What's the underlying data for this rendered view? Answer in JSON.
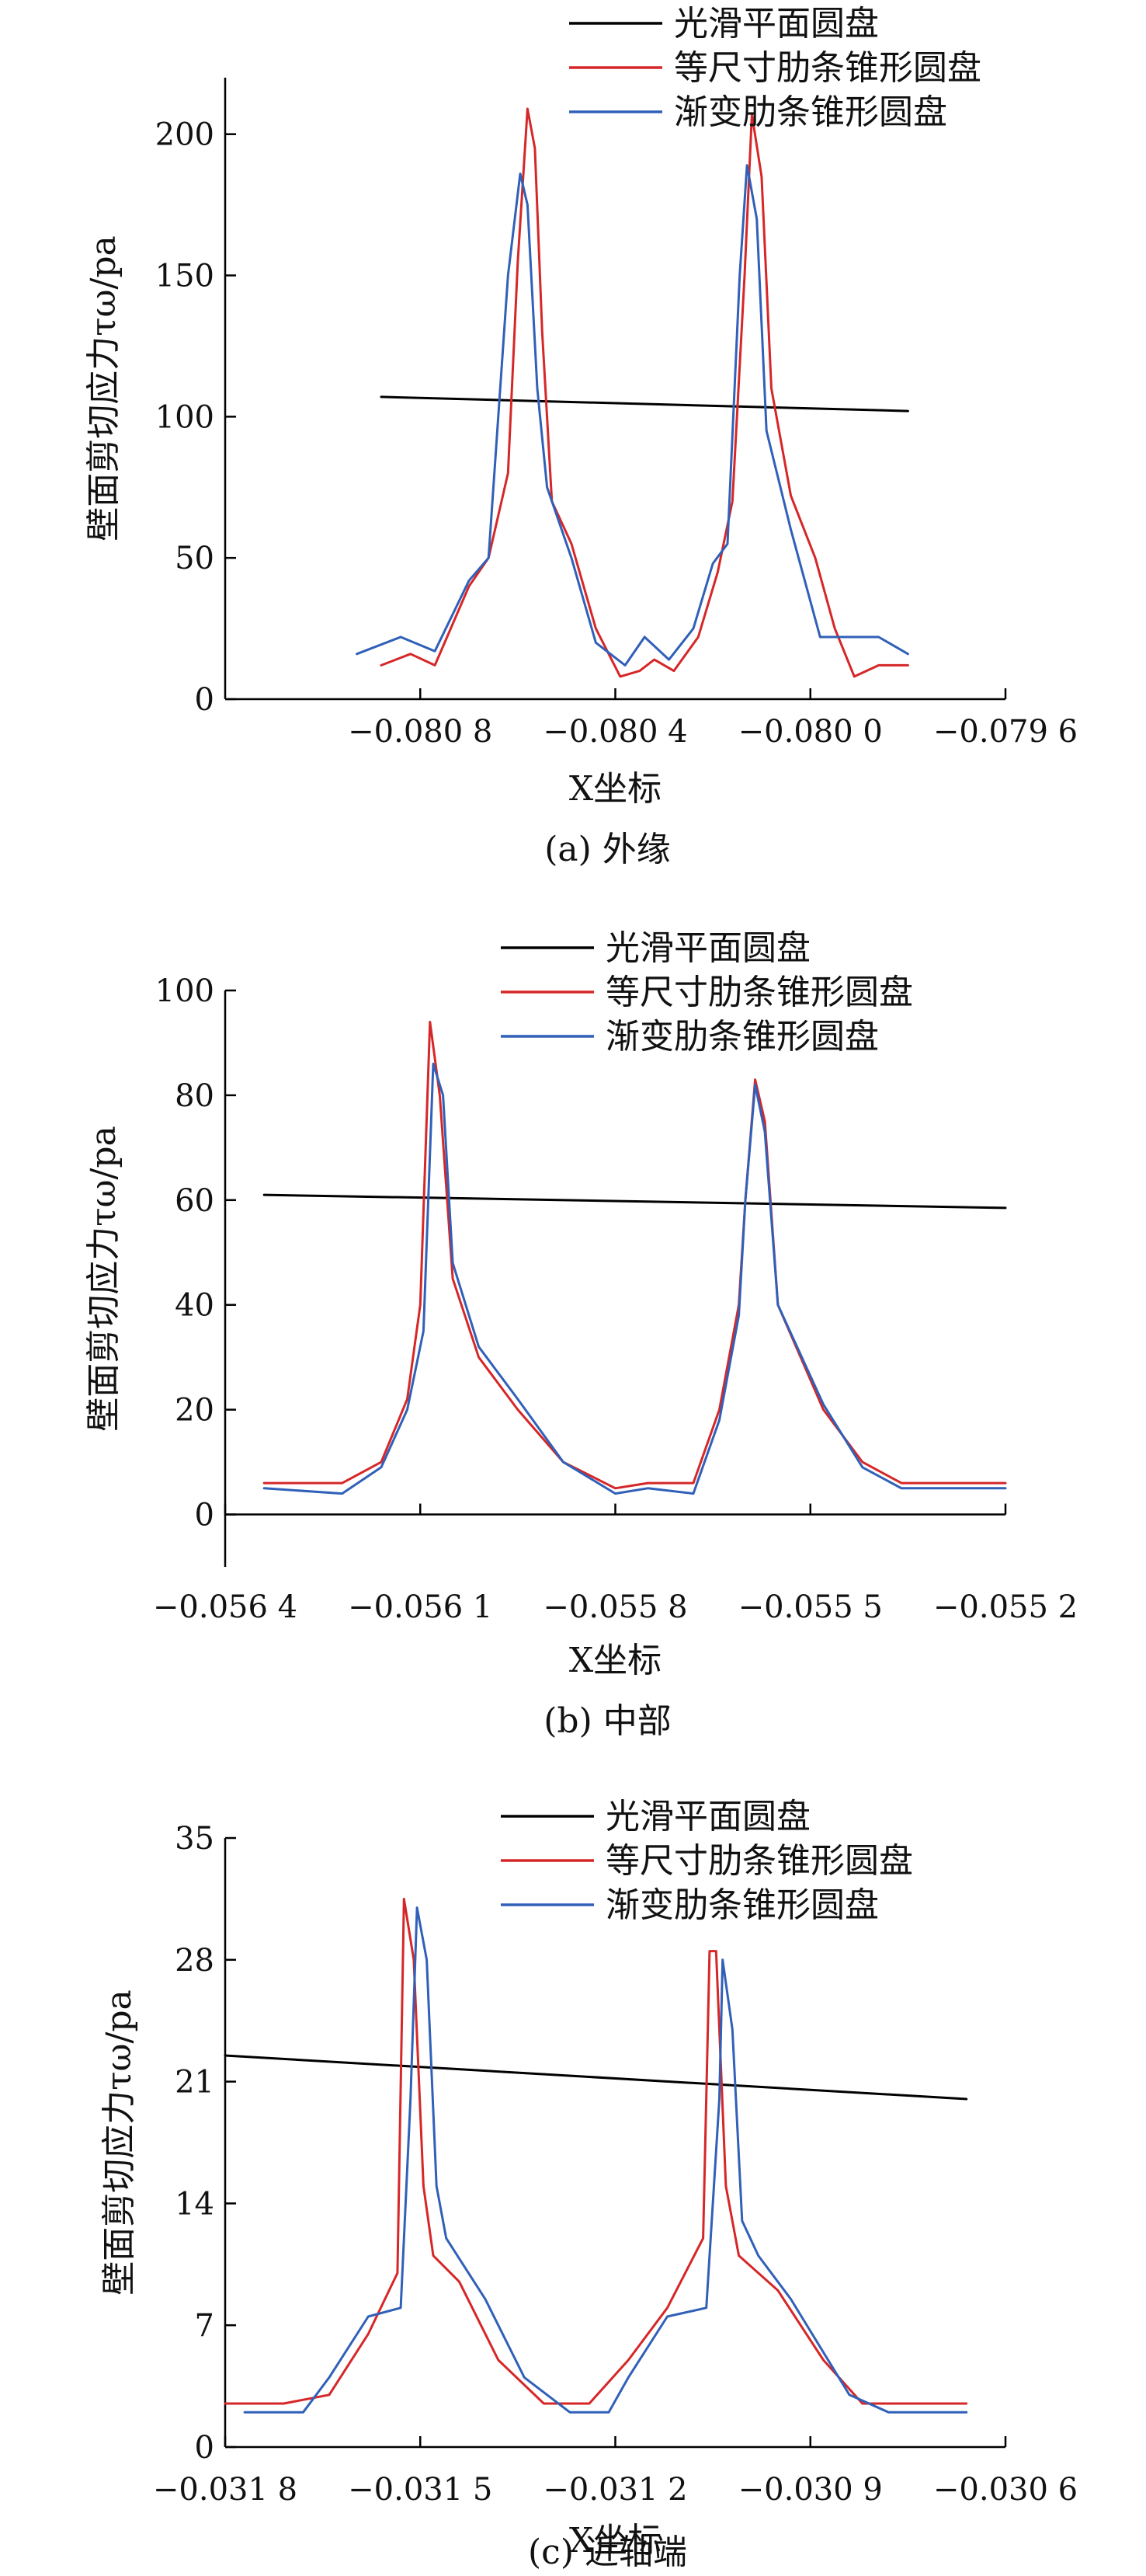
{
  "chart_data": [
    {
      "type": "line",
      "caption": "(a) 外缘",
      "xlabel": "X坐标",
      "ylabel": "壁面剪切应力τω/pa",
      "xlim": [
        -0.0812,
        -0.0796
      ],
      "ylim": [
        0,
        220
      ],
      "xticks": [
        -0.0808,
        -0.0804,
        -0.08,
        -0.0796
      ],
      "xtick_labels": [
        "−0.080 8",
        "−0.080 4",
        "−0.080 0",
        "−0.079 6"
      ],
      "yticks": [
        0,
        50,
        100,
        150,
        200
      ],
      "ytick_labels": [
        "0",
        "50",
        "100",
        "150",
        "200"
      ],
      "grid": false,
      "legend": "top-right",
      "series": [
        {
          "name": "光滑平面圆盘",
          "color": "#000000",
          "x": [
            -0.08088,
            -0.0798
          ],
          "y": [
            107,
            102
          ]
        },
        {
          "name": "等尺寸肋条锥形圆盘",
          "color": "#d62728",
          "x": [
            -0.08088,
            -0.08082,
            -0.08077,
            -0.0807,
            -0.08066,
            -0.08062,
            -0.0806,
            -0.08058,
            -0.080565,
            -0.08055,
            -0.08053,
            -0.08049,
            -0.08044,
            -0.08039,
            -0.08035,
            -0.08032,
            -0.08028,
            -0.08023,
            -0.08019,
            -0.08016,
            -0.080135,
            -0.08012,
            -0.0801,
            -0.08008,
            -0.08004,
            -0.07999,
            -0.07995,
            -0.07991,
            -0.07986,
            -0.0798
          ],
          "y": [
            12,
            16,
            12,
            40,
            50,
            80,
            155,
            209,
            195,
            130,
            70,
            55,
            25,
            8,
            10,
            14,
            10,
            22,
            45,
            70,
            150,
            207,
            185,
            110,
            72,
            50,
            25,
            8,
            12,
            12
          ]
        },
        {
          "name": "渐变肋条锥形圆盘",
          "color": "#3060b8",
          "x": [
            -0.08093,
            -0.08084,
            -0.08077,
            -0.0807,
            -0.08066,
            -0.08062,
            -0.080595,
            -0.08058,
            -0.08056,
            -0.08054,
            -0.08049,
            -0.08044,
            -0.08038,
            -0.08034,
            -0.08029,
            -0.08024,
            -0.0802,
            -0.08017,
            -0.080145,
            -0.08013,
            -0.08011,
            -0.08009,
            -0.08004,
            -0.07998,
            -0.0799,
            -0.07986,
            -0.0798
          ],
          "y": [
            16,
            22,
            17,
            42,
            50,
            150,
            186,
            175,
            110,
            75,
            50,
            20,
            12,
            22,
            14,
            25,
            48,
            55,
            150,
            189,
            170,
            95,
            60,
            22,
            22,
            22,
            16
          ]
        }
      ]
    },
    {
      "type": "line",
      "caption": "(b) 中部",
      "xlabel": "X坐标",
      "ylabel": "壁面剪切应力τω/pa",
      "xlim": [
        -0.0564,
        -0.0552
      ],
      "ylim": [
        -10,
        100
      ],
      "xticks": [
        -0.0564,
        -0.0561,
        -0.0558,
        -0.0555,
        -0.0552
      ],
      "xtick_labels": [
        "−0.056 4",
        "−0.056 1",
        "−0.055 8",
        "−0.055 5",
        "−0.055 2"
      ],
      "yticks": [
        0,
        20,
        40,
        60,
        80,
        100
      ],
      "ytick_labels": [
        "0",
        "20",
        "40",
        "60",
        "80",
        "100"
      ],
      "grid": false,
      "legend": "top-right",
      "series": [
        {
          "name": "光滑平面圆盘",
          "color": "#000000",
          "x": [
            -0.05634,
            -0.0552
          ],
          "y": [
            61,
            58.5
          ]
        },
        {
          "name": "等尺寸肋条锥形圆盘",
          "color": "#d62728",
          "x": [
            -0.05634,
            -0.05622,
            -0.05616,
            -0.05612,
            -0.0561,
            -0.056085,
            -0.05607,
            -0.05605,
            -0.05601,
            -0.05595,
            -0.05588,
            -0.0558,
            -0.05575,
            -0.05568,
            -0.05564,
            -0.05561,
            -0.0556,
            -0.055585,
            -0.05557,
            -0.05555,
            -0.05548,
            -0.05542,
            -0.05536,
            -0.0552
          ],
          "y": [
            6,
            6,
            10,
            22,
            40,
            94,
            80,
            45,
            30,
            20,
            10,
            5,
            6,
            6,
            20,
            40,
            60,
            83,
            75,
            40,
            20,
            10,
            6,
            6
          ]
        },
        {
          "name": "渐变肋条锥形圆盘",
          "color": "#3060b8",
          "x": [
            -0.05634,
            -0.05622,
            -0.05616,
            -0.05612,
            -0.056095,
            -0.05608,
            -0.056065,
            -0.05605,
            -0.05601,
            -0.05595,
            -0.05588,
            -0.0558,
            -0.05575,
            -0.05568,
            -0.05564,
            -0.05561,
            -0.0556,
            -0.055585,
            -0.05557,
            -0.05555,
            -0.05548,
            -0.05542,
            -0.05536,
            -0.0552
          ],
          "y": [
            5,
            4,
            9,
            20,
            35,
            86,
            80,
            48,
            32,
            22,
            10,
            4,
            5,
            4,
            18,
            38,
            60,
            82,
            73,
            40,
            21,
            9,
            5,
            5
          ]
        }
      ]
    },
    {
      "type": "line",
      "caption": "(c) 近轴端",
      "xlabel": "X坐标",
      "ylabel": "壁面剪切应力τω/pa",
      "xlim": [
        -0.0318,
        -0.0306
      ],
      "ylim": [
        0,
        35
      ],
      "xticks": [
        -0.0318,
        -0.0315,
        -0.0312,
        -0.0309,
        -0.0306
      ],
      "xtick_labels": [
        "−0.031 8",
        "−0.031 5",
        "−0.031 2",
        "−0.030 9",
        "−0.030 6"
      ],
      "yticks": [
        0,
        7,
        14,
        21,
        28,
        35
      ],
      "ytick_labels": [
        "0",
        "7",
        "14",
        "21",
        "28",
        "35"
      ],
      "grid": false,
      "legend": "top-right",
      "series": [
        {
          "name": "光滑平面圆盘",
          "color": "#000000",
          "x": [
            -0.0318,
            -0.03066
          ],
          "y": [
            22.5,
            20
          ]
        },
        {
          "name": "等尺寸肋条锥形圆盘",
          "color": "#d62728",
          "x": [
            -0.0318,
            -0.03171,
            -0.03164,
            -0.03158,
            -0.031535,
            -0.031525,
            -0.03151,
            -0.031495,
            -0.03148,
            -0.03144,
            -0.03138,
            -0.03131,
            -0.03124,
            -0.03118,
            -0.03112,
            -0.031065,
            -0.031055,
            -0.031045,
            -0.03103,
            -0.03101,
            -0.03095,
            -0.03088,
            -0.03082,
            -0.03066
          ],
          "y": [
            2.5,
            2.5,
            3,
            6.5,
            10,
            31.5,
            28,
            15,
            11,
            9.5,
            5,
            2.5,
            2.5,
            5,
            8,
            12,
            28.5,
            28.5,
            15,
            11,
            9,
            5,
            2.5,
            2.5
          ]
        },
        {
          "name": "渐变肋条锥形圆盘",
          "color": "#3060b8",
          "x": [
            -0.03177,
            -0.03168,
            -0.03164,
            -0.03158,
            -0.03153,
            -0.031515,
            -0.031505,
            -0.03149,
            -0.031475,
            -0.03146,
            -0.0314,
            -0.03134,
            -0.03127,
            -0.03121,
            -0.03118,
            -0.03112,
            -0.03106,
            -0.03104,
            -0.031035,
            -0.03102,
            -0.031005,
            -0.03098,
            -0.03093,
            -0.03084,
            -0.03078,
            -0.03066
          ],
          "y": [
            2,
            2,
            4,
            7.5,
            8,
            20,
            31,
            28,
            15,
            12,
            8.5,
            4,
            2,
            2,
            4,
            7.5,
            8,
            20,
            28,
            24,
            13,
            11,
            8.5,
            3,
            2,
            2
          ]
        }
      ]
    }
  ]
}
